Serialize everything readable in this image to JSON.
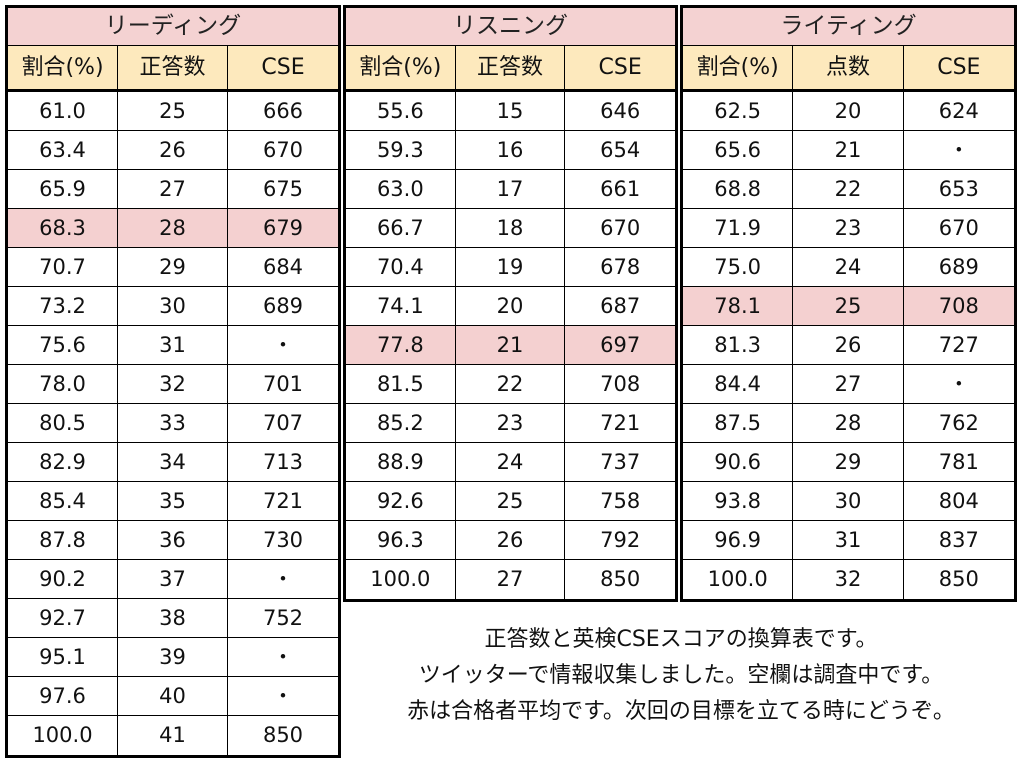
{
  "colors": {
    "title_background": "#f4d2d2",
    "column_header_background": "#fde9bd",
    "highlight_background": "#f4d0d0"
  },
  "tables": [
    {
      "title": "リーディング",
      "columns": [
        "割合(%)",
        "正答数",
        "CSE"
      ],
      "highlight_row": 3,
      "rows": [
        [
          "61.0",
          "25",
          "666"
        ],
        [
          "63.4",
          "26",
          "670"
        ],
        [
          "65.9",
          "27",
          "675"
        ],
        [
          "68.3",
          "28",
          "679"
        ],
        [
          "70.7",
          "29",
          "684"
        ],
        [
          "73.2",
          "30",
          "689"
        ],
        [
          "75.6",
          "31",
          "・"
        ],
        [
          "78.0",
          "32",
          "701"
        ],
        [
          "80.5",
          "33",
          "707"
        ],
        [
          "82.9",
          "34",
          "713"
        ],
        [
          "85.4",
          "35",
          "721"
        ],
        [
          "87.8",
          "36",
          "730"
        ],
        [
          "90.2",
          "37",
          "・"
        ],
        [
          "92.7",
          "38",
          "752"
        ],
        [
          "95.1",
          "39",
          "・"
        ],
        [
          "97.6",
          "40",
          "・"
        ],
        [
          "100.0",
          "41",
          "850"
        ]
      ]
    },
    {
      "title": "リスニング",
      "columns": [
        "割合(%)",
        "正答数",
        "CSE"
      ],
      "highlight_row": 6,
      "rows": [
        [
          "55.6",
          "15",
          "646"
        ],
        [
          "59.3",
          "16",
          "654"
        ],
        [
          "63.0",
          "17",
          "661"
        ],
        [
          "66.7",
          "18",
          "670"
        ],
        [
          "70.4",
          "19",
          "678"
        ],
        [
          "74.1",
          "20",
          "687"
        ],
        [
          "77.8",
          "21",
          "697"
        ],
        [
          "81.5",
          "22",
          "708"
        ],
        [
          "85.2",
          "23",
          "721"
        ],
        [
          "88.9",
          "24",
          "737"
        ],
        [
          "92.6",
          "25",
          "758"
        ],
        [
          "96.3",
          "26",
          "792"
        ],
        [
          "100.0",
          "27",
          "850"
        ]
      ]
    },
    {
      "title": "ライティング",
      "columns": [
        "割合(%)",
        "点数",
        "CSE"
      ],
      "highlight_row": 5,
      "rows": [
        [
          "62.5",
          "20",
          "624"
        ],
        [
          "65.6",
          "21",
          "・"
        ],
        [
          "68.8",
          "22",
          "653"
        ],
        [
          "71.9",
          "23",
          "670"
        ],
        [
          "75.0",
          "24",
          "689"
        ],
        [
          "78.1",
          "25",
          "708"
        ],
        [
          "81.3",
          "26",
          "727"
        ],
        [
          "84.4",
          "27",
          "・"
        ],
        [
          "87.5",
          "28",
          "762"
        ],
        [
          "90.6",
          "29",
          "781"
        ],
        [
          "93.8",
          "30",
          "804"
        ],
        [
          "96.9",
          "31",
          "837"
        ],
        [
          "100.0",
          "32",
          "850"
        ]
      ]
    }
  ],
  "note": {
    "lines": [
      "正答数と英検CSEスコアの換算表です。",
      "ツイッターで情報収集しました。空欄は調査中です。",
      "赤は合格者平均です。次回の目標を立てる時にどうぞ。"
    ]
  }
}
